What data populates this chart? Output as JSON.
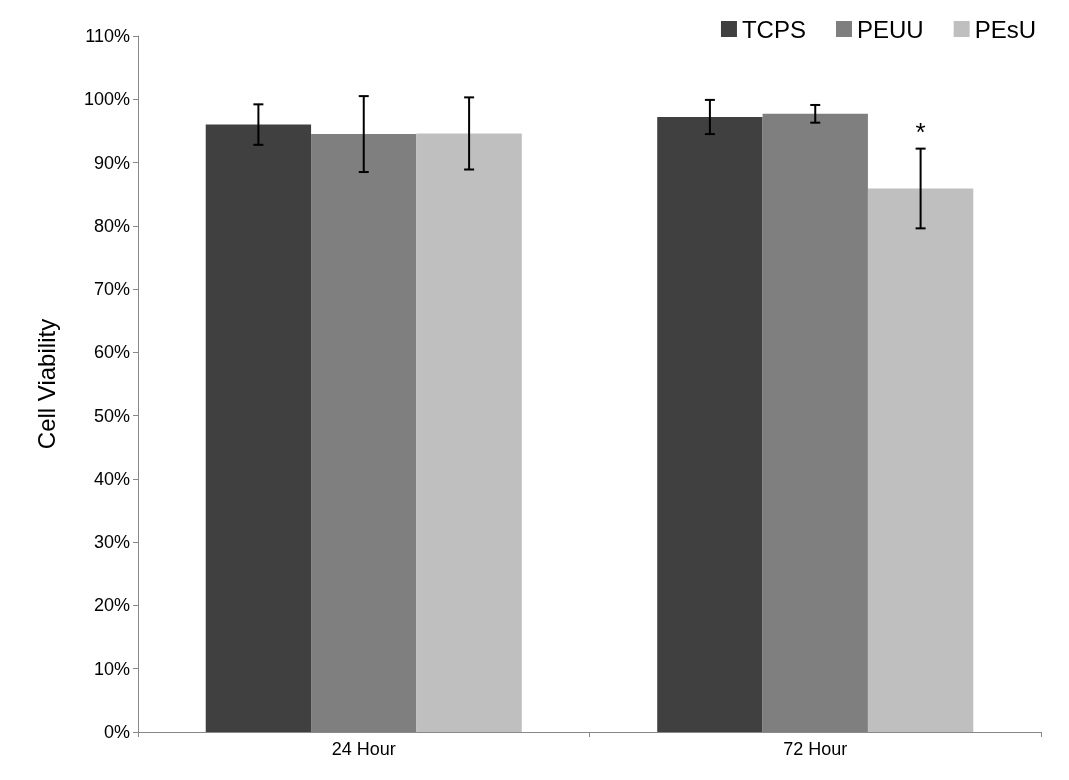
{
  "chart_data": {
    "type": "bar",
    "ylabel": "Cell Viability",
    "categories": [
      "24 Hour",
      "72 Hour"
    ],
    "series": [
      {
        "name": "TCPS",
        "color": "#404040",
        "values": [
          96,
          97.2
        ],
        "errors": [
          3.2,
          2.7
        ]
      },
      {
        "name": "PEUU",
        "color": "#7f7f7f",
        "values": [
          94.5,
          97.7
        ],
        "errors": [
          6,
          1.4
        ]
      },
      {
        "name": "PEsU",
        "color": "#bfbfbf",
        "values": [
          94.6,
          85.9
        ],
        "errors": [
          5.7,
          6.3
        ]
      }
    ],
    "ylim": [
      0,
      110
    ],
    "yticks": [
      {
        "value": 0,
        "label": "0%"
      },
      {
        "value": 10,
        "label": "10%"
      },
      {
        "value": 20,
        "label": "20%"
      },
      {
        "value": 30,
        "label": "30%"
      },
      {
        "value": 40,
        "label": "40%"
      },
      {
        "value": 50,
        "label": "50%"
      },
      {
        "value": 60,
        "label": "60%"
      },
      {
        "value": 70,
        "label": "70%"
      },
      {
        "value": 80,
        "label": "80%"
      },
      {
        "value": 90,
        "label": "90%"
      },
      {
        "value": 100,
        "label": "100%"
      },
      {
        "value": 110,
        "label": "110%"
      }
    ],
    "annotations": [
      "*"
    ],
    "legend": "top right",
    "grid": false
  }
}
